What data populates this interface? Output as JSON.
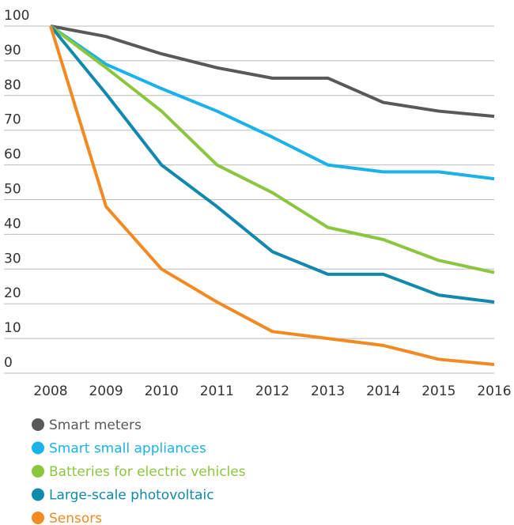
{
  "chart_data": {
    "type": "line",
    "categories": [
      "2008",
      "2009",
      "2010",
      "2011",
      "2012",
      "2013",
      "2014",
      "2015",
      "2016"
    ],
    "series": [
      {
        "name": "Smart meters",
        "color": "#58595b",
        "values": [
          100,
          97,
          92,
          88,
          85,
          85,
          78,
          75.5,
          74
        ]
      },
      {
        "name": "Smart small appliances",
        "color": "#1ab2e8",
        "values": [
          100,
          89,
          82,
          75.5,
          68,
          60,
          58,
          58,
          56
        ]
      },
      {
        "name": "Batteries for electric vehicles",
        "color": "#8cc63f",
        "values": [
          100,
          88,
          75.5,
          60,
          52,
          42,
          38.5,
          32.5,
          29
        ]
      },
      {
        "name": "Large-scale photovoltaic",
        "color": "#1189ad",
        "values": [
          100,
          80.5,
          60,
          48,
          35,
          28.5,
          28.5,
          22.5,
          20.5
        ]
      },
      {
        "name": "Sensors",
        "color": "#f28a22",
        "values": [
          100,
          48,
          30,
          20.5,
          12,
          10,
          8,
          4,
          2.5
        ]
      }
    ],
    "ylim": [
      0,
      100
    ],
    "yticks": [
      0,
      10,
      20,
      30,
      40,
      50,
      60,
      70,
      80,
      90,
      100
    ],
    "grid": true
  }
}
